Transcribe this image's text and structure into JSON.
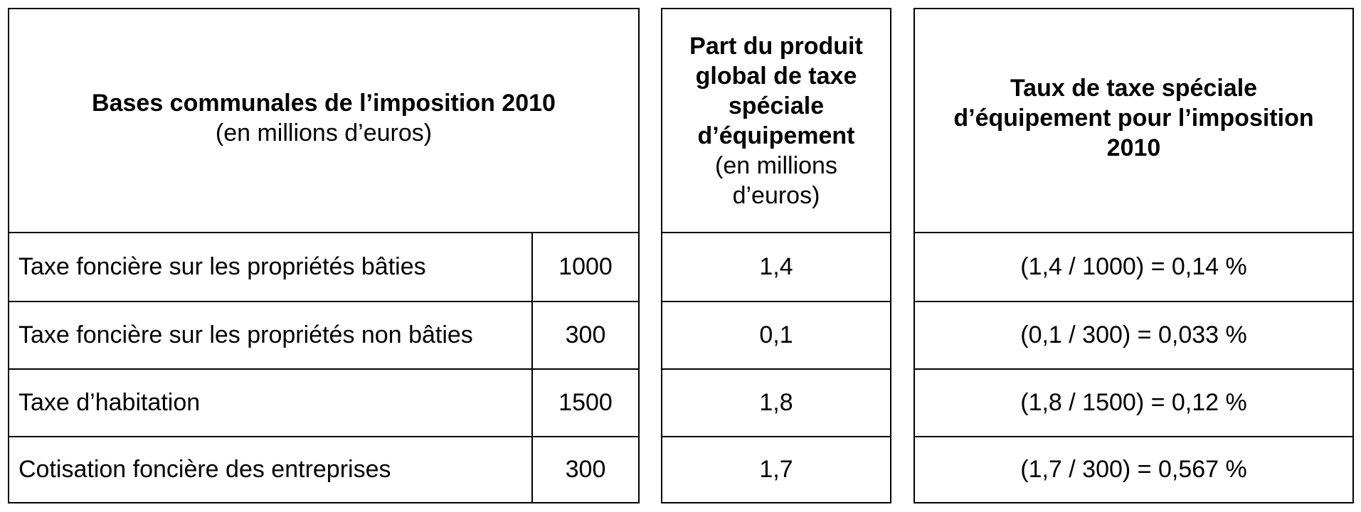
{
  "table": {
    "bases": {
      "title": "Bases communales de l’imposition 2010",
      "subtitle": "(en millions d’euros)"
    },
    "part": {
      "title_lines": [
        "Part du produit",
        "global de taxe",
        "spéciale",
        "d’équipement"
      ],
      "subtitle_lines": [
        "(en millions",
        "d’euros)"
      ]
    },
    "taux": {
      "title_lines": [
        "Taux de taxe spéciale",
        "d’équipement pour l’imposition",
        "2010"
      ]
    },
    "rows": [
      {
        "label": "Taxe foncière sur les propriétés bâties",
        "base": "1000",
        "part": "1,4",
        "taux": "(1,4 / 1000) = 0,14 %"
      },
      {
        "label": "Taxe foncière sur les propriétés non bâties",
        "base": "300",
        "part": "0,1",
        "taux": "(0,1 / 300) = 0,033 %"
      },
      {
        "label": "Taxe d’habitation",
        "base": "1500",
        "part": "1,8",
        "taux": "(1,8 / 1500) = 0,12 %"
      },
      {
        "label": "Cotisation foncière des entreprises",
        "base": "300",
        "part": "1,7",
        "taux": "(1,7 / 300) = 0,567 %"
      }
    ]
  }
}
